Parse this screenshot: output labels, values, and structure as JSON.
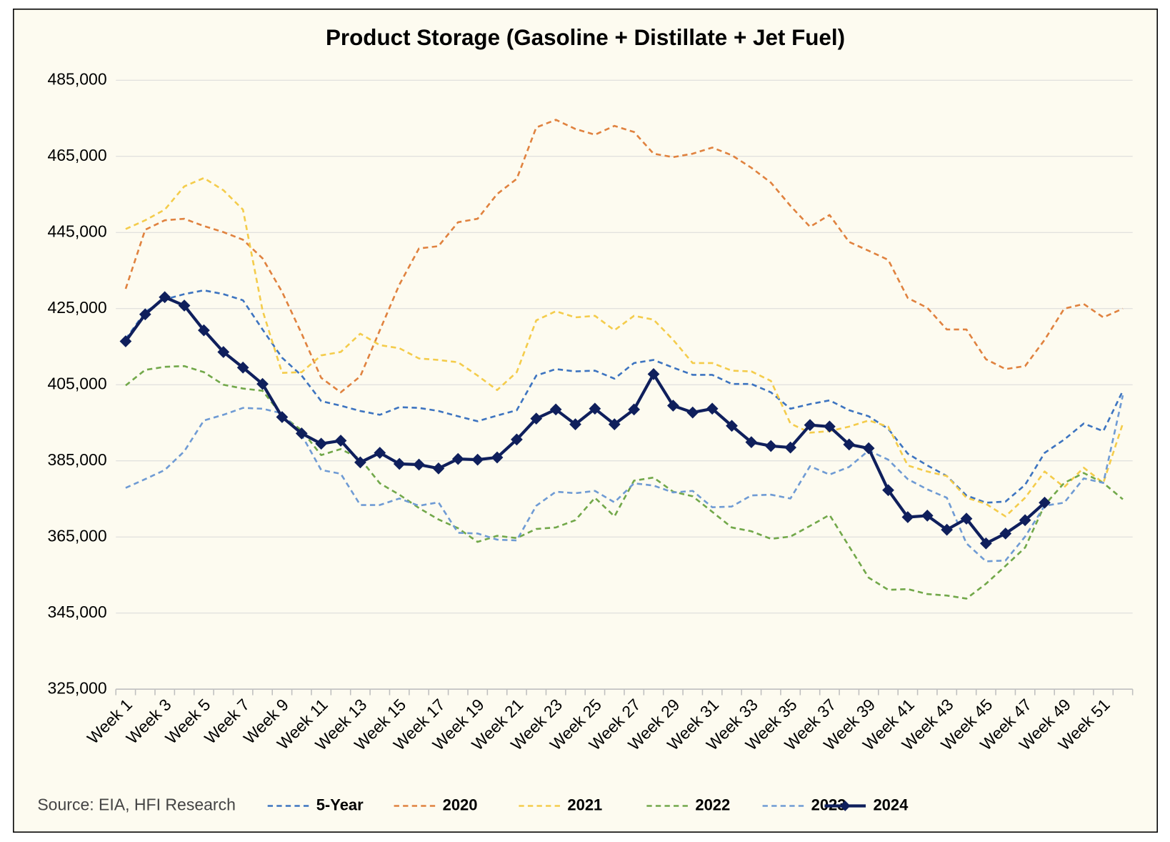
{
  "chart_data": {
    "type": "line",
    "title": "Product Storage (Gasoline + Distillate + Jet Fuel)",
    "source": "Source: EIA, HFI Research",
    "categories": [
      "Week 1",
      null,
      "Week 3",
      null,
      "Week 5",
      null,
      "Week 7",
      null,
      "Week 9",
      null,
      "Week 11",
      null,
      "Week 13",
      null,
      "Week 15",
      null,
      "Week 17",
      null,
      "Week 19",
      null,
      "Week 21",
      null,
      "Week 23",
      null,
      "Week 25",
      null,
      "Week 27",
      null,
      "Week 29",
      null,
      "Week 31",
      null,
      "Week 33",
      null,
      "Week 35",
      null,
      "Week 37",
      null,
      "Week 39",
      null,
      "Week 41",
      null,
      "Week 43",
      null,
      "Week 45",
      null,
      "Week 47",
      null,
      "Week 49",
      null,
      "Week 51",
      null
    ],
    "ylim": [
      325000,
      485000
    ],
    "yticks": [
      {
        "value": 325000,
        "label": "325,000"
      },
      {
        "value": 345000,
        "label": "345,000"
      },
      {
        "value": 365000,
        "label": "365,000"
      },
      {
        "value": 385000,
        "label": "385,000"
      },
      {
        "value": 405000,
        "label": "405,000"
      },
      {
        "value": 425000,
        "label": "425,000"
      },
      {
        "value": 445000,
        "label": "445,000"
      },
      {
        "value": 465000,
        "label": "465,000"
      },
      {
        "value": 485000,
        "label": "485,000"
      }
    ],
    "grid": true,
    "legend": "bottom",
    "series": [
      {
        "name": "5-Year",
        "color": "#3d74c0",
        "dashed": true,
        "values": [
          417000,
          424100,
          427400,
          428800,
          429800,
          428800,
          427200,
          419500,
          412100,
          407400,
          400700,
          399500,
          398100,
          397100,
          399100,
          398900,
          398100,
          396700,
          395400,
          396900,
          398300,
          407400,
          409100,
          408500,
          408700,
          406600,
          410700,
          411500,
          409500,
          407600,
          407600,
          405200,
          405200,
          403000,
          398700,
          399900,
          400900,
          398300,
          396700,
          393400,
          386900,
          383800,
          381000,
          375900,
          374000,
          374300,
          378700,
          387100,
          390600,
          394800,
          392800,
          403400
        ]
      },
      {
        "name": "2020",
        "color": "#e0823f",
        "dashed": true,
        "values": [
          430200,
          445700,
          448200,
          448600,
          446700,
          445100,
          443100,
          438200,
          429400,
          418400,
          406800,
          403000,
          407200,
          419300,
          431300,
          440800,
          441400,
          447700,
          448600,
          455100,
          459100,
          472600,
          474600,
          472200,
          470700,
          473000,
          471400,
          465700,
          464800,
          465700,
          467300,
          465300,
          462000,
          458100,
          452000,
          446500,
          449600,
          442500,
          440200,
          437800,
          427800,
          425200,
          419500,
          419500,
          411700,
          409100,
          409900,
          416800,
          425000,
          426200,
          422700,
          425000
        ]
      },
      {
        "name": "2021",
        "color": "#f4cc4b",
        "dashed": true,
        "values": [
          445900,
          448200,
          451000,
          457100,
          459300,
          456100,
          451000,
          424500,
          408100,
          408300,
          412700,
          413600,
          418400,
          415400,
          414600,
          411900,
          411500,
          410900,
          407400,
          403600,
          408300,
          421900,
          424300,
          422700,
          423100,
          419300,
          423100,
          422100,
          416800,
          410700,
          410700,
          408700,
          408500,
          406000,
          394800,
          392400,
          392800,
          394000,
          395600,
          394000,
          383800,
          382200,
          381000,
          375300,
          373700,
          370400,
          375300,
          382200,
          378100,
          383200,
          379200,
          394800
        ]
      },
      {
        "name": "2022",
        "color": "#72a84a",
        "dashed": true,
        "values": [
          404800,
          408900,
          409700,
          409900,
          408300,
          405000,
          404000,
          403400,
          396900,
          393000,
          386500,
          388100,
          385500,
          379100,
          376100,
          372600,
          369600,
          367300,
          363700,
          365300,
          364700,
          367100,
          367500,
          369400,
          375300,
          370400,
          379800,
          380600,
          376900,
          375700,
          371600,
          367500,
          366500,
          364500,
          365100,
          367900,
          370800,
          362500,
          354300,
          351100,
          351300,
          350000,
          349600,
          348800,
          352700,
          357400,
          362200,
          373400,
          379200,
          381800,
          379200,
          374900
        ]
      },
      {
        "name": "2023",
        "color": "#6f9bd4",
        "dashed": true,
        "values": [
          377900,
          380200,
          382600,
          387500,
          395600,
          397100,
          398900,
          398700,
          397500,
          391800,
          382600,
          381600,
          373400,
          373400,
          375100,
          373200,
          374100,
          366100,
          365900,
          364300,
          364100,
          373200,
          376900,
          376500,
          377100,
          374100,
          379100,
          378500,
          376700,
          377100,
          372800,
          373000,
          375900,
          376100,
          375100,
          383600,
          381400,
          383400,
          387700,
          385300,
          380200,
          377500,
          375300,
          363300,
          358600,
          358800,
          365100,
          373200,
          374000,
          380400,
          379200,
          402200
        ]
      },
      {
        "name": "2024",
        "color": "#0f1f5c",
        "dashed": false,
        "markers": true,
        "values": [
          416400,
          423500,
          428000,
          425800,
          419300,
          413600,
          409500,
          405200,
          396500,
          392200,
          389500,
          390300,
          384600,
          387100,
          384200,
          384000,
          383000,
          385500,
          385300,
          385900,
          390600,
          396100,
          398500,
          394600,
          398700,
          394600,
          398500,
          407800,
          399500,
          397700,
          398700,
          394200,
          389900,
          388900,
          388500,
          394400,
          394000,
          389300,
          388300,
          377300,
          370200,
          370600,
          366900,
          369800,
          363300,
          365900,
          369400,
          374000,
          null,
          null,
          null,
          null
        ]
      }
    ]
  }
}
